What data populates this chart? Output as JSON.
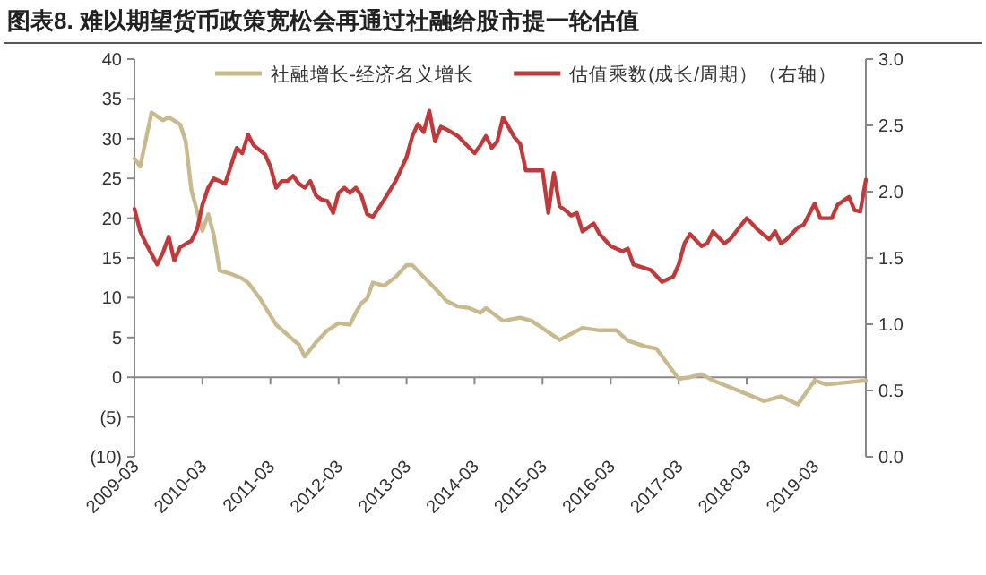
{
  "chart_data": {
    "type": "line",
    "title": "图表8. 难以期望货币政策宽松会再通过社融给股市提一轮估值",
    "legend": "top",
    "marker": "none",
    "line_style": "solid",
    "xlim": [
      "2009-03",
      "2019-12"
    ],
    "xticks": [
      {
        "value": "2009-03",
        "label": "2009-03"
      },
      {
        "value": "2010-03",
        "label": "2010-03"
      },
      {
        "value": "2011-03",
        "label": "2011-03"
      },
      {
        "value": "2012-03",
        "label": "2012-03"
      },
      {
        "value": "2013-03",
        "label": "2013-03"
      },
      {
        "value": "2014-03",
        "label": "2014-03"
      },
      {
        "value": "2015-03",
        "label": "2015-03"
      },
      {
        "value": "2016-03",
        "label": "2016-03"
      },
      {
        "value": "2017-03",
        "label": "2017-03"
      },
      {
        "value": "2018-03",
        "label": "2018-03"
      },
      {
        "value": "2019-03",
        "label": "2019-03"
      }
    ],
    "ylim": [
      -10,
      40
    ],
    "yticks": [
      {
        "value": -10,
        "label": "(10)"
      },
      {
        "value": -5,
        "label": "(5)"
      },
      0,
      5,
      10,
      15,
      20,
      25,
      30,
      35,
      40
    ],
    "y2lim": [
      0,
      3
    ],
    "y2ticks": [
      {
        "value": 0,
        "label": "0.0"
      },
      {
        "value": 0.5,
        "label": "0.5"
      },
      {
        "value": 1,
        "label": "1.0"
      },
      {
        "value": 1.5,
        "label": "1.5"
      },
      {
        "value": 2,
        "label": "2.0"
      },
      {
        "value": 2.5,
        "label": "2.5"
      },
      {
        "value": 3,
        "label": "3.0"
      }
    ],
    "series": [
      {
        "name": "社融增长-经济名义增长",
        "color": "#c8b98e",
        "x": [
          "2009-03",
          "2009-04",
          "2009-06",
          "2009-08",
          "2009-09",
          "2009-11",
          "2009-12",
          "2010-01",
          "2010-03",
          "2010-04",
          "2010-05",
          "2010-06",
          "2010-08",
          "2010-10",
          "2010-11",
          "2011-01",
          "2011-04",
          "2011-07",
          "2011-08",
          "2011-09",
          "2011-11",
          "2012-01",
          "2012-03",
          "2012-05",
          "2012-06",
          "2012-07",
          "2012-08",
          "2012-09",
          "2012-11",
          "2013-01",
          "2013-03",
          "2013-04",
          "2013-06",
          "2013-07",
          "2013-09",
          "2013-10",
          "2013-12",
          "2014-02",
          "2014-04",
          "2014-05",
          "2014-08",
          "2014-11",
          "2015-01",
          "2015-06",
          "2015-10",
          "2016-01",
          "2016-04",
          "2016-06",
          "2016-09",
          "2016-11",
          "2017-03",
          "2017-05",
          "2017-07",
          "2017-09",
          "2018-03",
          "2018-06",
          "2018-09",
          "2018-12",
          "2019-03",
          "2019-05",
          "2019-08",
          "2019-12"
        ],
        "values": [
          27.5,
          26.5,
          33.3,
          32.3,
          32.7,
          31.8,
          29.7,
          23.5,
          18.4,
          20.5,
          17.9,
          13.4,
          13.0,
          12.4,
          11.9,
          10.0,
          6.6,
          4.7,
          4.1,
          2.6,
          4.4,
          5.9,
          6.8,
          6.6,
          8.1,
          9.3,
          9.9,
          11.9,
          11.5,
          12.6,
          14.1,
          14.1,
          12.6,
          11.9,
          10.4,
          9.6,
          8.9,
          8.7,
          8.1,
          8.7,
          7.1,
          7.5,
          7.1,
          4.7,
          6.2,
          5.9,
          5.9,
          4.6,
          3.9,
          3.6,
          -0.2,
          0.0,
          0.4,
          -0.4,
          -2.1,
          -3.0,
          -2.4,
          -3.4,
          -0.4,
          -0.9,
          -0.7,
          -0.4
        ]
      },
      {
        "name": "估值乘数(成长/周期）（右轴）",
        "color": "#c0393b",
        "axis": "y2",
        "x": [
          "2009-03",
          "2009-04",
          "2009-05",
          "2009-07",
          "2009-08",
          "2009-09",
          "2009-10",
          "2009-11",
          "2010-01",
          "2010-02",
          "2010-03",
          "2010-04",
          "2010-05",
          "2010-06",
          "2010-07",
          "2010-09",
          "2010-10",
          "2010-11",
          "2010-12",
          "2011-02",
          "2011-03",
          "2011-04",
          "2011-05",
          "2011-06",
          "2011-07",
          "2011-08",
          "2011-09",
          "2011-10",
          "2011-11",
          "2011-12",
          "2012-01",
          "2012-02",
          "2012-03",
          "2012-04",
          "2012-05",
          "2012-06",
          "2012-07",
          "2012-08",
          "2012-09",
          "2012-11",
          "2013-01",
          "2013-03",
          "2013-04",
          "2013-05",
          "2013-06",
          "2013-07",
          "2013-08",
          "2013-09",
          "2013-10",
          "2013-12",
          "2014-03",
          "2014-04",
          "2014-05",
          "2014-06",
          "2014-07",
          "2014-08",
          "2014-10",
          "2014-11",
          "2014-12",
          "2015-03",
          "2015-04",
          "2015-05",
          "2015-06",
          "2015-07",
          "2015-08",
          "2015-09",
          "2015-10",
          "2015-12",
          "2016-01",
          "2016-03",
          "2016-05",
          "2016-06",
          "2016-07",
          "2016-10",
          "2016-12",
          "2017-02",
          "2017-03",
          "2017-04",
          "2017-05",
          "2017-07",
          "2017-08",
          "2017-09",
          "2017-11",
          "2017-12",
          "2018-03",
          "2018-05",
          "2018-07",
          "2018-08",
          "2018-09",
          "2018-10",
          "2018-12",
          "2019-01",
          "2019-03",
          "2019-04",
          "2019-06",
          "2019-07",
          "2019-09",
          "2019-10",
          "2019-11",
          "2019-12"
        ],
        "values": [
          1.87,
          1.7,
          1.61,
          1.45,
          1.54,
          1.66,
          1.48,
          1.58,
          1.63,
          1.72,
          1.9,
          2.03,
          2.1,
          2.08,
          2.06,
          2.33,
          2.29,
          2.43,
          2.35,
          2.28,
          2.19,
          2.03,
          2.08,
          2.08,
          2.12,
          2.06,
          2.03,
          2.08,
          1.97,
          1.94,
          1.93,
          1.84,
          1.99,
          2.03,
          1.99,
          2.03,
          1.97,
          1.83,
          1.81,
          1.94,
          2.08,
          2.26,
          2.42,
          2.51,
          2.45,
          2.61,
          2.38,
          2.49,
          2.47,
          2.42,
          2.29,
          2.35,
          2.42,
          2.33,
          2.38,
          2.56,
          2.41,
          2.36,
          2.16,
          2.16,
          1.84,
          2.14,
          1.89,
          1.86,
          1.82,
          1.84,
          1.7,
          1.76,
          1.68,
          1.59,
          1.55,
          1.57,
          1.45,
          1.41,
          1.32,
          1.36,
          1.45,
          1.61,
          1.68,
          1.59,
          1.61,
          1.7,
          1.61,
          1.64,
          1.8,
          1.71,
          1.64,
          1.7,
          1.61,
          1.64,
          1.73,
          1.75,
          1.91,
          1.8,
          1.8,
          1.9,
          1.96,
          1.86,
          1.85,
          2.09
        ]
      }
    ]
  }
}
